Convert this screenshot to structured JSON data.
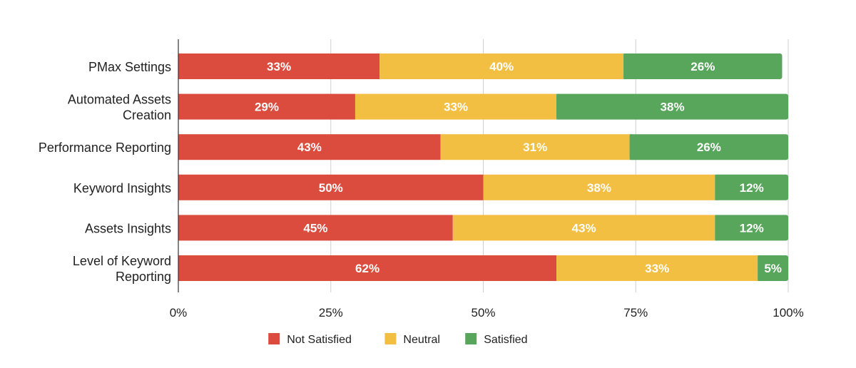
{
  "chart_data": {
    "type": "bar",
    "orientation": "horizontal",
    "stacked": true,
    "categories": [
      [
        "PMax Settings"
      ],
      [
        "Automated Assets",
        "Creation"
      ],
      [
        "Performance Reporting"
      ],
      [
        "Keyword Insights"
      ],
      [
        "Assets Insights"
      ],
      [
        "Level of Keyword",
        "Reporting"
      ]
    ],
    "series": [
      {
        "name": "Not Satisfied",
        "color": "#db4c3f",
        "values": [
          33,
          29,
          43,
          50,
          45,
          62
        ]
      },
      {
        "name": "Neutral",
        "color": "#f2bf42",
        "values": [
          40,
          33,
          31,
          38,
          43,
          33
        ]
      },
      {
        "name": "Satisfied",
        "color": "#58a55c",
        "values": [
          26,
          38,
          26,
          12,
          12,
          5
        ]
      }
    ],
    "data_labels": [
      [
        "33%",
        "40%",
        "26%"
      ],
      [
        "29%",
        "33%",
        "38%"
      ],
      [
        "43%",
        "31%",
        "26%"
      ],
      [
        "50%",
        "38%",
        "12%"
      ],
      [
        "45%",
        "43%",
        "12%"
      ],
      [
        "62%",
        "33%",
        "5%"
      ]
    ],
    "xlim": [
      0,
      100
    ],
    "x_ticks": [
      0,
      25,
      50,
      75,
      100
    ],
    "x_tick_labels": [
      "0%",
      "25%",
      "50%",
      "75%",
      "100%"
    ],
    "grid": true,
    "legend": "bottom",
    "title": "",
    "xlabel": "",
    "ylabel": ""
  }
}
